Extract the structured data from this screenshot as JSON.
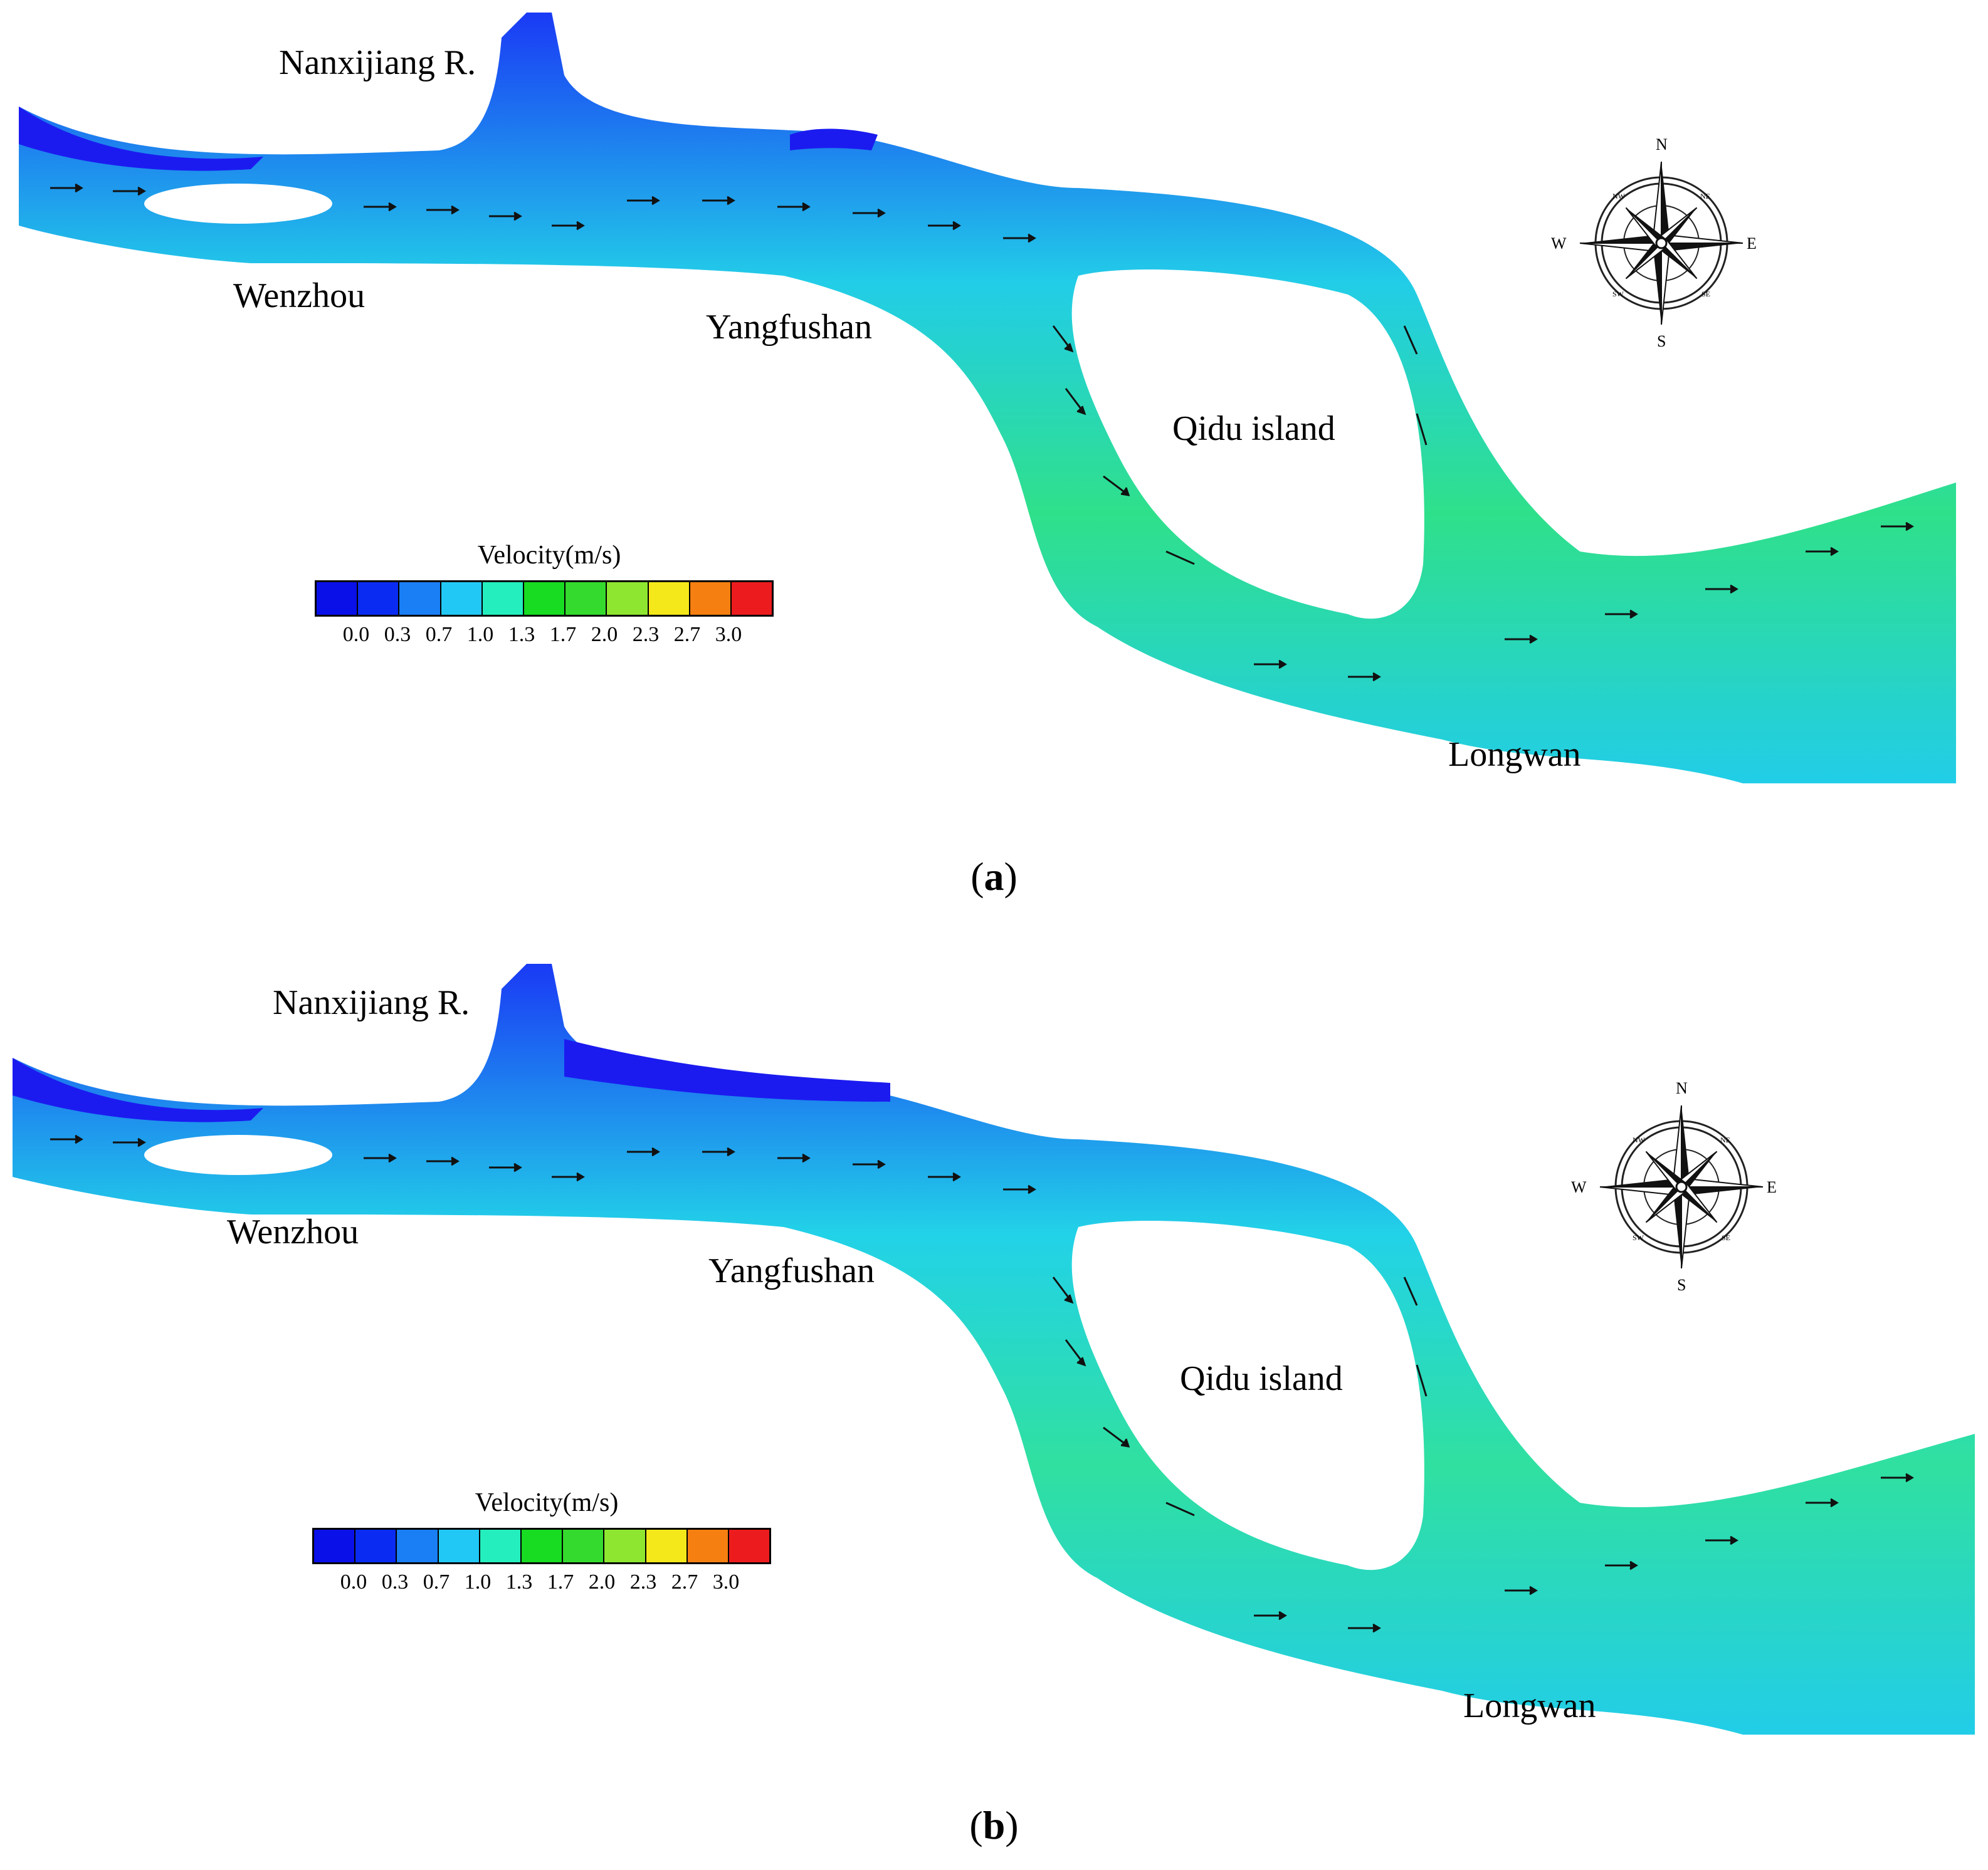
{
  "colors": {
    "slow": "#1a1aff",
    "mid": "#22d4f2",
    "fast": "#27e14a",
    "arrow": "#111111"
  },
  "legend": {
    "title": "Velocity(m/s)",
    "ticks": [
      "0.0",
      "0.3",
      "0.7",
      "1.0",
      "1.3",
      "1.7",
      "2.0",
      "2.3",
      "2.7",
      "3.0"
    ],
    "colors": [
      "#0a10e8",
      "#0a2cf2",
      "#1a7ef5",
      "#22c8f5",
      "#24eebe",
      "#17dc21",
      "#35da2e",
      "#8ee630",
      "#f4e81a",
      "#f57f11",
      "#ec1c1e"
    ]
  },
  "compass": {
    "n": "N",
    "s": "S",
    "e": "E",
    "w": "W",
    "ne": "NE",
    "nw": "NW",
    "se": "SE",
    "sw": "SW"
  },
  "panels": [
    {
      "caption": "a",
      "places": {
        "nanxijiang": "Nanxijiang R.",
        "wenzhou": "Wenzhou",
        "yangfushan": "Yangfushan",
        "qidu": "Qidu island",
        "longwan": "Longwan"
      }
    },
    {
      "caption": "b",
      "places": {
        "nanxijiang": "Nanxijiang R.",
        "wenzhou": "Wenzhou",
        "yangfushan": "Yangfushan",
        "qidu": "Qidu island",
        "longwan": "Longwan"
      }
    }
  ]
}
